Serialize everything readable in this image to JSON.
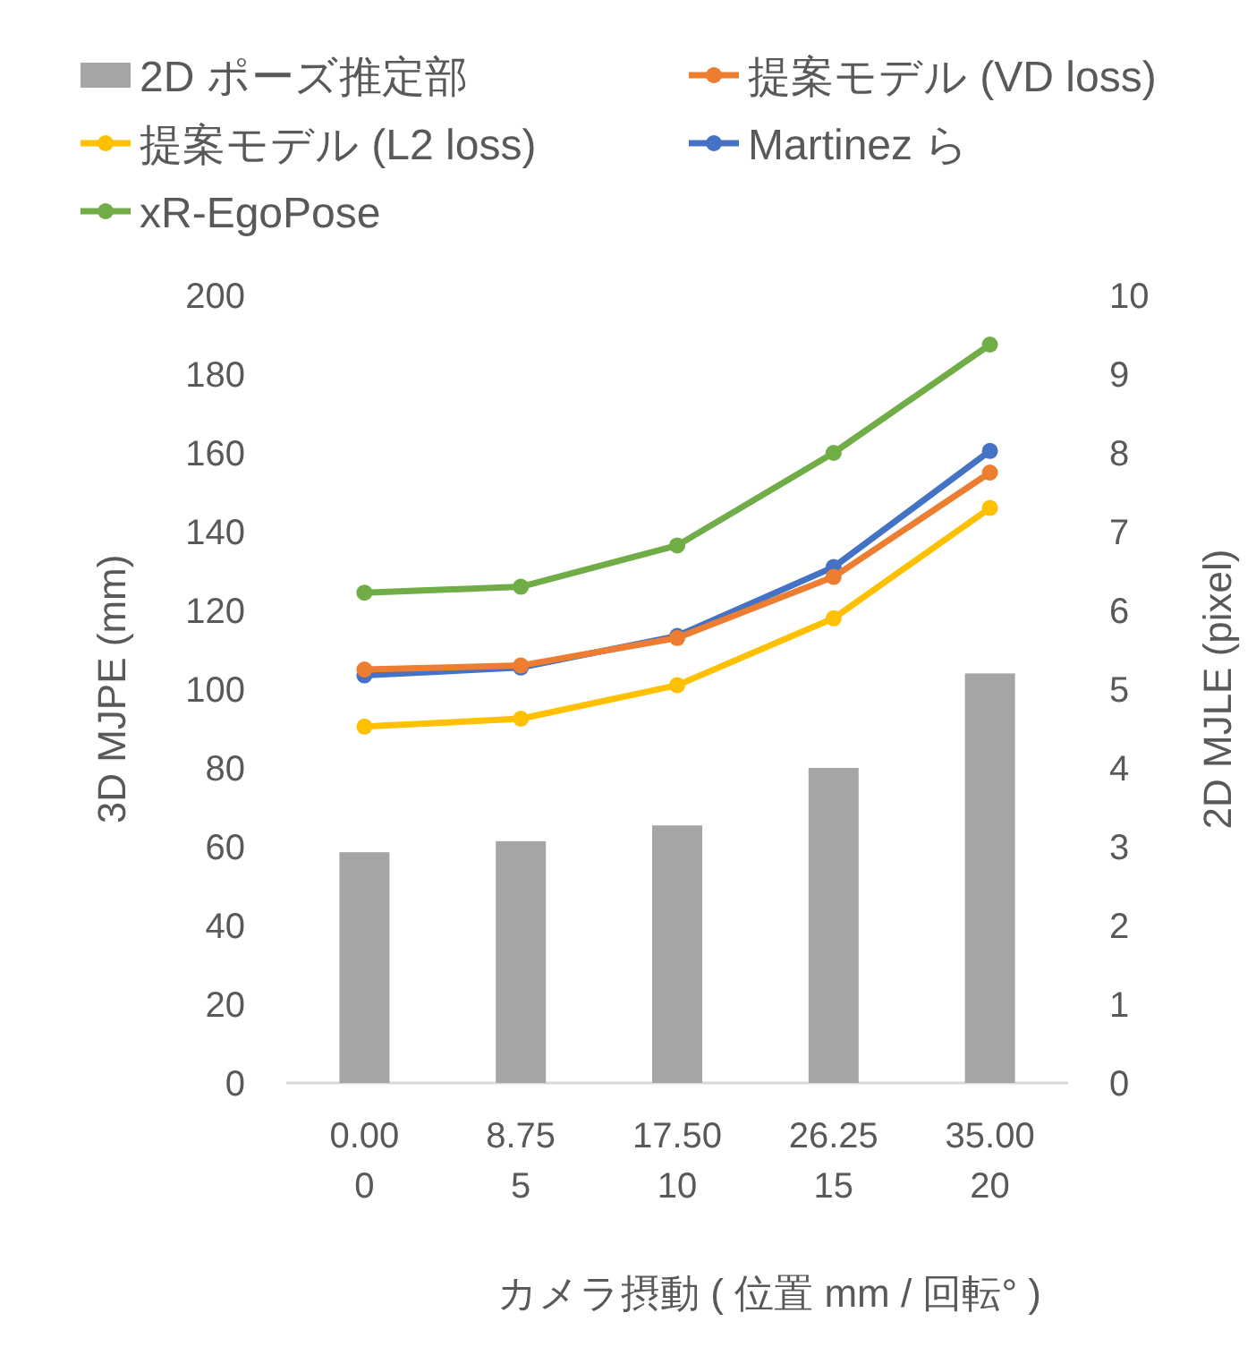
{
  "chart_data": {
    "type": "line",
    "xlabel": "カメラ摂動 ( 位置 mm / 回転°  )",
    "ylabel": "3D MJPE (mm)",
    "y2label": "2D MJLE (pixel)",
    "categories": [
      "0.00\n0",
      "8.75\n5",
      "17.50\n10",
      "26.25\n15",
      "35.00\n20"
    ],
    "series": [
      {
        "name": "2D ポーズ推定部",
        "type": "bar",
        "axis": "y2",
        "color": "#a5a5a5",
        "values": [
          2.93,
          3.07,
          3.27,
          4.0,
          5.2
        ]
      },
      {
        "name": "提案モデル (VD loss)",
        "color": "#ed7d31",
        "values": [
          105,
          106,
          113,
          128.5,
          155
        ]
      },
      {
        "name": "提案モデル (L2 loss)",
        "color": "#ffc000",
        "values": [
          90.5,
          92.5,
          101,
          118,
          146
        ]
      },
      {
        "name": "Martinez ら",
        "color": "#4472c4",
        "values": [
          103.5,
          105.5,
          113.5,
          131,
          160.5
        ]
      },
      {
        "name": "xR-EgoPose",
        "color": "#70ad47",
        "values": [
          124.5,
          126,
          136.5,
          160,
          187.5
        ]
      }
    ],
    "ylim": [
      0,
      200
    ],
    "yticks": [
      0,
      20,
      40,
      60,
      80,
      100,
      120,
      140,
      160,
      180,
      200
    ],
    "y2lim": [
      0,
      10
    ],
    "y2ticks": [
      0,
      1,
      2,
      3,
      4,
      5,
      6,
      7,
      8,
      9,
      10
    ],
    "marker": "circle",
    "legend": "top",
    "grid": false
  }
}
